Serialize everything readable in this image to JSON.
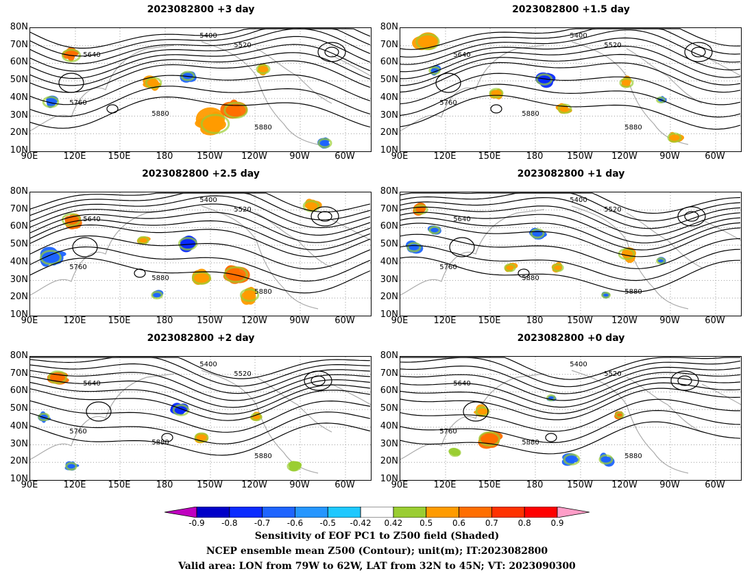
{
  "panels": [
    {
      "title": "2023082800 +3 day"
    },
    {
      "title": "2023082800 +1.5 day"
    },
    {
      "title": "2023082800 +2.5 day"
    },
    {
      "title": "2023082800 +1 day"
    },
    {
      "title": "2023082800 +2 day"
    },
    {
      "title": "2023082800 +0 day"
    }
  ],
  "lat_labels": [
    "80N",
    "70N",
    "60N",
    "50N",
    "40N",
    "30N",
    "20N",
    "10N"
  ],
  "lon_labels": [
    "90E",
    "120E",
    "150E",
    "180",
    "150W",
    "120W",
    "90W",
    "60W"
  ],
  "contour_labels": [
    "5400",
    "5520",
    "5640",
    "5760",
    "5880"
  ],
  "colorbar": {
    "ticks": [
      "-0.9",
      "-0.8",
      "-0.7",
      "-0.6",
      "-0.5",
      "-0.42",
      "0.42",
      "0.5",
      "0.6",
      "0.7",
      "0.8",
      "0.9"
    ],
    "colors": [
      "#c000c0",
      "#0000c8",
      "#0a2bff",
      "#1e64ff",
      "#2596ff",
      "#1ec8ff",
      "#ffffff",
      "#9acd32",
      "#ff9b00",
      "#ff6e00",
      "#ff3200",
      "#ff0000",
      "#ff9ec8"
    ]
  },
  "footer": {
    "line1": "Sensitivity of EOF PC1 to Z500 field (Shaded)",
    "line2": "NCEP ensemble mean Z500 (Contour); unit(m); IT:2023082800",
    "line3": "Valid area: LON from 79W to 62W, LAT from 32N to 45N; VT: 2023090300"
  }
}
